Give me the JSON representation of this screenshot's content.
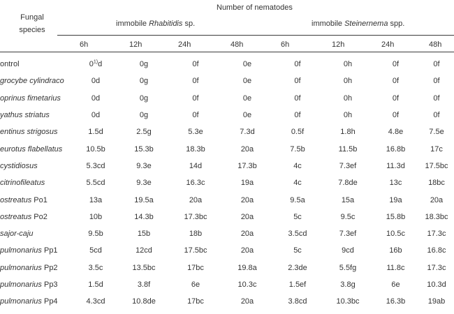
{
  "header": {
    "fungal_species_line1": "Fungal",
    "fungal_species_line2": "species",
    "number_of_nematodes": "Number of nematodes",
    "group_rhabditis": {
      "prefix": "immobile ",
      "genus": "Rhabitidis",
      "suffix": " sp."
    },
    "group_steinernema": {
      "prefix": "immobile ",
      "genus": "Steinernema",
      "suffix": " spp."
    },
    "times": [
      "6h",
      "12h",
      "24h",
      "48h",
      "6h",
      "12h",
      "24h",
      "48h"
    ]
  },
  "rows": [
    {
      "species": "ontrol",
      "italic": false,
      "values": [
        "0",
        "0g",
        "0f",
        "0e",
        "0f",
        "0h",
        "0f",
        "0f"
      ],
      "first_sup": "1)",
      "first_tail": "d"
    },
    {
      "species": "grocybe cylindraco",
      "italic": true,
      "values": [
        "0d",
        "0g",
        "0f",
        "0e",
        "0f",
        "0h",
        "0f",
        "0f"
      ]
    },
    {
      "species": "oprinus fimetarius",
      "italic": true,
      "values": [
        "0d",
        "0g",
        "0f",
        "0e",
        "0f",
        "0h",
        "0f",
        "0f"
      ]
    },
    {
      "species": "yathus striatus",
      "italic": true,
      "values": [
        "0d",
        "0g",
        "0f",
        "0e",
        "0f",
        "0h",
        "0f",
        "0f"
      ]
    },
    {
      "species": "entinus strigosus",
      "italic": true,
      "values": [
        "1.5d",
        "2.5g",
        "5.3e",
        "7.3d",
        "0.5f",
        "1.8h",
        "4.8e",
        "7.5e"
      ]
    },
    {
      "species": "eurotus flabellatus",
      "italic": true,
      "values": [
        "10.5b",
        "15.3b",
        "18.3b",
        "20a",
        "7.5b",
        "11.5b",
        "16.8b",
        "17c"
      ]
    },
    {
      "species": "cystidiosus",
      "italic": true,
      "values": [
        "5.3cd",
        "9.3e",
        "14d",
        "17.3b",
        "4c",
        "7.3ef",
        "11.3d",
        "17.5bc"
      ]
    },
    {
      "species": "citrinofileatus",
      "italic": true,
      "values": [
        "5.5cd",
        "9.3e",
        "16.3c",
        "19a",
        "4c",
        "7.8de",
        "13c",
        "18bc"
      ]
    },
    {
      "species": "ostreatus",
      "italic": true,
      "suffix": " Po1",
      "values": [
        "13a",
        "19.5a",
        "20a",
        "20a",
        "9.5a",
        "15a",
        "19a",
        "20a"
      ]
    },
    {
      "species": "ostreatus",
      "italic": true,
      "suffix": " Po2",
      "values": [
        "10b",
        "14.3b",
        "17.3bc",
        "20a",
        "5c",
        "9.5c",
        "15.8b",
        "18.3bc"
      ]
    },
    {
      "species": "sajor-caju",
      "italic": true,
      "values": [
        "9.5b",
        "15b",
        "18b",
        "20a",
        "3.5cd",
        "7.3ef",
        "10.5c",
        "17.3c"
      ]
    },
    {
      "species": "pulmonarius",
      "italic": true,
      "suffix": " Pp1",
      "values": [
        "5cd",
        "12cd",
        "17.5bc",
        "20a",
        "5c",
        "9cd",
        "16b",
        "16.8c"
      ]
    },
    {
      "species": "pulmonarius",
      "italic": true,
      "suffix": " Pp2",
      "values": [
        "3.5c",
        "13.5bc",
        "17bc",
        "19.8a",
        "2.3de",
        "5.5fg",
        "11.8c",
        "17.3c"
      ]
    },
    {
      "species": "pulmonarius",
      "italic": true,
      "suffix": " Pp3",
      "values": [
        "1.5d",
        "3.8f",
        "6e",
        "10.3c",
        "1.5ef",
        "3.8g",
        "6e",
        "10.3d"
      ]
    },
    {
      "species": "pulmonarius",
      "italic": true,
      "suffix": " Pp4",
      "values": [
        "4.3cd",
        "10.8de",
        "17bc",
        "20a",
        "3.8cd",
        "10.3bc",
        "16.3b",
        "19ab"
      ]
    }
  ]
}
